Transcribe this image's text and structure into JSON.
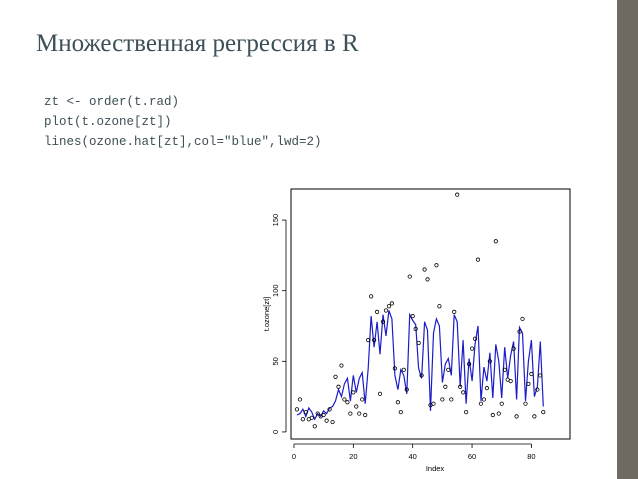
{
  "slide": {
    "title": "Множественная регрессия в R",
    "code_lines": [
      "zt <- order(t.rad)",
      "plot(t.ozone[zt])",
      "lines(ozone.hat[zt],col=\"blue\",lwd=2)"
    ]
  },
  "colors": {
    "background": "#ffffff",
    "text": "#3d4f57",
    "frame": "#5f5f5a",
    "line": "#1c1cc8"
  },
  "chart_data": {
    "type": "scatter",
    "xlabel": "Index",
    "ylabel": "t.ozone[zt]",
    "xlim": [
      -1,
      93
    ],
    "ylim": [
      -5,
      172
    ],
    "xticks": [
      0,
      20,
      40,
      60,
      80
    ],
    "yticks": [
      0,
      50,
      100,
      150
    ],
    "points": [
      [
        1,
        16
      ],
      [
        2,
        23
      ],
      [
        3,
        9
      ],
      [
        4,
        14
      ],
      [
        5,
        9
      ],
      [
        6,
        10
      ],
      [
        7,
        4
      ],
      [
        8,
        13
      ],
      [
        9,
        11
      ],
      [
        10,
        12
      ],
      [
        11,
        8
      ],
      [
        12,
        16
      ],
      [
        13,
        7
      ],
      [
        14,
        39
      ],
      [
        15,
        32
      ],
      [
        16,
        47
      ],
      [
        17,
        23
      ],
      [
        18,
        21
      ],
      [
        19,
        13
      ],
      [
        20,
        28
      ],
      [
        21,
        18
      ],
      [
        22,
        13
      ],
      [
        23,
        23
      ],
      [
        24,
        12
      ],
      [
        25,
        65
      ],
      [
        26,
        96
      ],
      [
        27,
        65
      ],
      [
        28,
        85
      ],
      [
        29,
        27
      ],
      [
        30,
        78
      ],
      [
        31,
        86
      ],
      [
        32,
        89
      ],
      [
        33,
        91
      ],
      [
        34,
        45
      ],
      [
        35,
        21
      ],
      [
        36,
        14
      ],
      [
        37,
        44
      ],
      [
        38,
        30
      ],
      [
        39,
        110
      ],
      [
        40,
        82
      ],
      [
        41,
        73
      ],
      [
        42,
        63
      ],
      [
        43,
        40
      ],
      [
        44,
        115
      ],
      [
        45,
        108
      ],
      [
        46,
        19
      ],
      [
        47,
        20
      ],
      [
        48,
        118
      ],
      [
        49,
        89
      ],
      [
        50,
        23
      ],
      [
        51,
        32
      ],
      [
        52,
        44
      ],
      [
        53,
        23
      ],
      [
        54,
        85
      ],
      [
        55,
        168
      ],
      [
        56,
        32
      ],
      [
        57,
        28
      ],
      [
        58,
        14
      ],
      [
        59,
        48
      ],
      [
        60,
        59
      ],
      [
        61,
        66
      ],
      [
        62,
        122
      ],
      [
        63,
        20
      ],
      [
        64,
        23
      ],
      [
        65,
        31
      ],
      [
        66,
        50
      ],
      [
        67,
        12
      ],
      [
        68,
        135
      ],
      [
        69,
        13
      ],
      [
        70,
        20
      ],
      [
        71,
        44
      ],
      [
        72,
        37
      ],
      [
        73,
        36
      ],
      [
        74,
        59
      ],
      [
        75,
        11
      ],
      [
        76,
        71
      ],
      [
        77,
        80
      ],
      [
        78,
        20
      ],
      [
        79,
        34
      ],
      [
        80,
        41
      ],
      [
        81,
        11
      ],
      [
        82,
        30
      ],
      [
        83,
        40
      ],
      [
        84,
        14
      ]
    ],
    "series": [
      {
        "values": [
          [
            1,
            12
          ],
          [
            2,
            13
          ],
          [
            3,
            16
          ],
          [
            4,
            11
          ],
          [
            5,
            17
          ],
          [
            6,
            14
          ],
          [
            7,
            9
          ],
          [
            8,
            13
          ],
          [
            9,
            11
          ],
          [
            10,
            15
          ],
          [
            11,
            13
          ],
          [
            12,
            17
          ],
          [
            13,
            18
          ],
          [
            14,
            22
          ],
          [
            15,
            30
          ],
          [
            16,
            25
          ],
          [
            17,
            34
          ],
          [
            18,
            38
          ],
          [
            19,
            22
          ],
          [
            20,
            40
          ],
          [
            21,
            28
          ],
          [
            22,
            38
          ],
          [
            23,
            42
          ],
          [
            24,
            20
          ],
          [
            25,
            45
          ],
          [
            26,
            82
          ],
          [
            27,
            60
          ],
          [
            28,
            78
          ],
          [
            29,
            55
          ],
          [
            30,
            83
          ],
          [
            31,
            68
          ],
          [
            32,
            86
          ],
          [
            33,
            80
          ],
          [
            34,
            40
          ],
          [
            35,
            30
          ],
          [
            36,
            44
          ],
          [
            37,
            40
          ],
          [
            38,
            27
          ],
          [
            39,
            83
          ],
          [
            40,
            79
          ],
          [
            41,
            76
          ],
          [
            42,
            45
          ],
          [
            43,
            38
          ],
          [
            44,
            78
          ],
          [
            45,
            72
          ],
          [
            46,
            15
          ],
          [
            47,
            70
          ],
          [
            48,
            80
          ],
          [
            49,
            75
          ],
          [
            50,
            35
          ],
          [
            51,
            48
          ],
          [
            52,
            52
          ],
          [
            53,
            40
          ],
          [
            54,
            83
          ],
          [
            55,
            78
          ],
          [
            56,
            32
          ],
          [
            57,
            65
          ],
          [
            58,
            20
          ],
          [
            59,
            52
          ],
          [
            60,
            36
          ],
          [
            61,
            62
          ],
          [
            62,
            75
          ],
          [
            63,
            22
          ],
          [
            64,
            46
          ],
          [
            65,
            36
          ],
          [
            66,
            56
          ],
          [
            67,
            24
          ],
          [
            68,
            62
          ],
          [
            69,
            50
          ],
          [
            70,
            24
          ],
          [
            71,
            60
          ],
          [
            72,
            38
          ],
          [
            73,
            54
          ],
          [
            74,
            64
          ],
          [
            75,
            23
          ],
          [
            76,
            74
          ],
          [
            77,
            70
          ],
          [
            78,
            22
          ],
          [
            79,
            50
          ],
          [
            80,
            65
          ],
          [
            81,
            25
          ],
          [
            82,
            32
          ],
          [
            83,
            64
          ],
          [
            84,
            18
          ]
        ]
      }
    ]
  }
}
